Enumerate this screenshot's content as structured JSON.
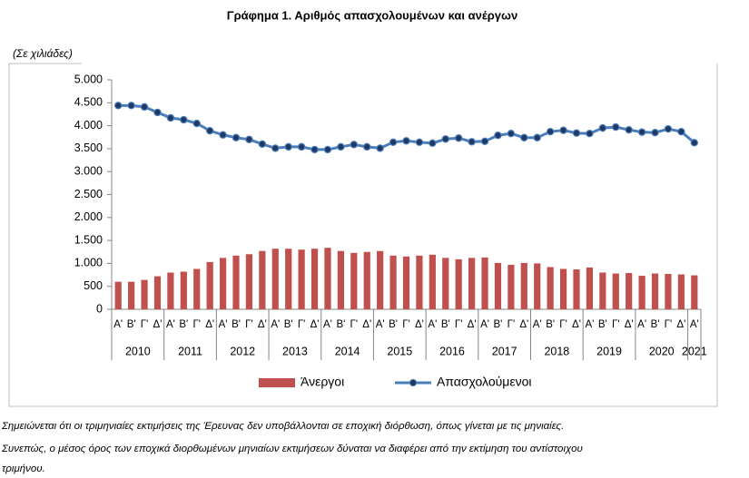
{
  "chart_data": {
    "type": "bar",
    "title": "Γράφημα 1. Αριθμός απασχολουμένων και ανέργων",
    "y_label": "(Σε χιλιάδες)",
    "categories": [
      "Α'",
      "Β'",
      "Γ'",
      "Δ'",
      "Α'",
      "Β'",
      "Γ'",
      "Δ'",
      "Α'",
      "Β'",
      "Γ'",
      "Δ'",
      "Α'",
      "Β'",
      "Γ'",
      "Δ'",
      "Α'",
      "Β'",
      "Γ'",
      "Δ'",
      "Α'",
      "Β'",
      "Γ'",
      "Δ'",
      "Α'",
      "Β'",
      "Γ'",
      "Δ'",
      "Α'",
      "Β'",
      "Γ'",
      "Δ'",
      "Α'",
      "Β'",
      "Γ'",
      "Δ'",
      "Α'",
      "Β'",
      "Γ'",
      "Δ'",
      "Α'",
      "Β'",
      "Γ'",
      "Δ'",
      "Α'"
    ],
    "year_groups": [
      "2010",
      "2011",
      "2012",
      "2013",
      "2014",
      "2015",
      "2016",
      "2017",
      "2018",
      "2019",
      "2020",
      "2021"
    ],
    "series": [
      {
        "name": "Άνεργοι",
        "type": "bar",
        "color": "#c0504d",
        "values": [
          600,
          600,
          640,
          720,
          800,
          820,
          880,
          1030,
          1120,
          1170,
          1200,
          1270,
          1320,
          1320,
          1300,
          1320,
          1340,
          1270,
          1230,
          1250,
          1270,
          1170,
          1150,
          1170,
          1190,
          1120,
          1090,
          1120,
          1130,
          1010,
          970,
          1010,
          1000,
          920,
          880,
          870,
          910,
          800,
          780,
          790,
          730,
          780,
          770,
          760,
          740
        ]
      },
      {
        "name": "Απασχολούμενοι",
        "type": "line",
        "color": "#4a7ebb",
        "values": [
          4440,
          4440,
          4410,
          4290,
          4170,
          4130,
          4050,
          3890,
          3800,
          3740,
          3700,
          3600,
          3510,
          3540,
          3540,
          3480,
          3480,
          3540,
          3590,
          3540,
          3510,
          3640,
          3670,
          3640,
          3620,
          3710,
          3730,
          3650,
          3660,
          3790,
          3830,
          3740,
          3740,
          3870,
          3900,
          3840,
          3830,
          3950,
          3970,
          3910,
          3860,
          3850,
          3930,
          3870,
          3630
        ]
      }
    ],
    "ylim": [
      0,
      5000
    ],
    "yticks": [
      0,
      {
        "value": 500,
        "label": "500"
      },
      {
        "value": 1000,
        "label": "1.000"
      },
      {
        "value": 1500,
        "label": "1.500"
      },
      {
        "value": 2000,
        "label": "2.000"
      },
      {
        "value": 2500,
        "label": "2.500"
      },
      {
        "value": 3000,
        "label": "3.000"
      },
      {
        "value": 3500,
        "label": "3.500"
      },
      {
        "value": 4000,
        "label": "4.000"
      },
      {
        "value": 4500,
        "label": "4.500"
      },
      {
        "value": 5000,
        "label": "5.000"
      }
    ],
    "grid": false,
    "legend": "bottom"
  },
  "notes": [
    "Σημειώνεται ότι οι τριμηνιαίες εκτιμήσεις της Έρευνας δεν υποβάλλονται σε εποχική διόρθωση, όπως γίνεται με τις μηνιαίες.",
    "Συνεπώς, ο μέσος όρος των εποχικά διορθωμένων μηνιαίων εκτιμήσεων δύναται να διαφέρει από την εκτίμηση του αντίστοιχου",
    "τριμήνου."
  ]
}
